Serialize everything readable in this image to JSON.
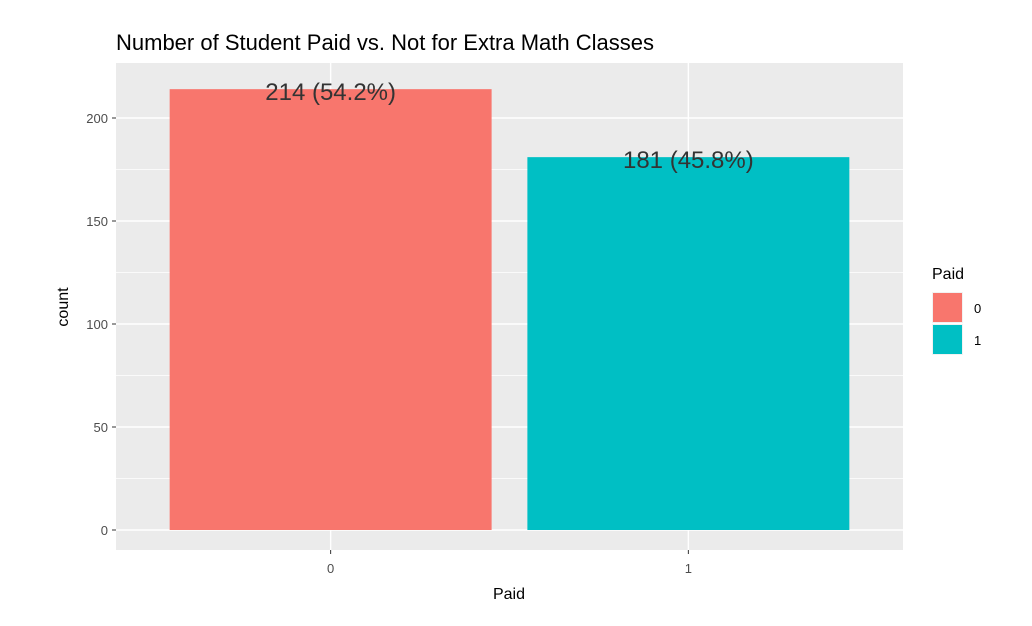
{
  "chart_data": {
    "type": "bar",
    "title": "Number of Student Paid vs. Not for Extra Math Classes",
    "xlabel": "Paid",
    "ylabel": "count",
    "categories": [
      "0",
      "1"
    ],
    "values": [
      214,
      181
    ],
    "data_labels": [
      "214 (54.2%)",
      "181 (45.8%)"
    ],
    "colors": [
      "#F8766D",
      "#00BFC4"
    ],
    "ylim": [
      0,
      226
    ],
    "yticks": [
      0,
      50,
      100,
      150,
      200
    ],
    "ytick_labels": [
      "0",
      "50",
      "100",
      "150",
      "200"
    ],
    "grid": true,
    "panel_background": "#EBEBEB",
    "legend": {
      "title": "Paid",
      "placement": "right",
      "entries": [
        {
          "label": "0",
          "color": "#F8766D"
        },
        {
          "label": "1",
          "color": "#00BFC4"
        }
      ]
    }
  }
}
